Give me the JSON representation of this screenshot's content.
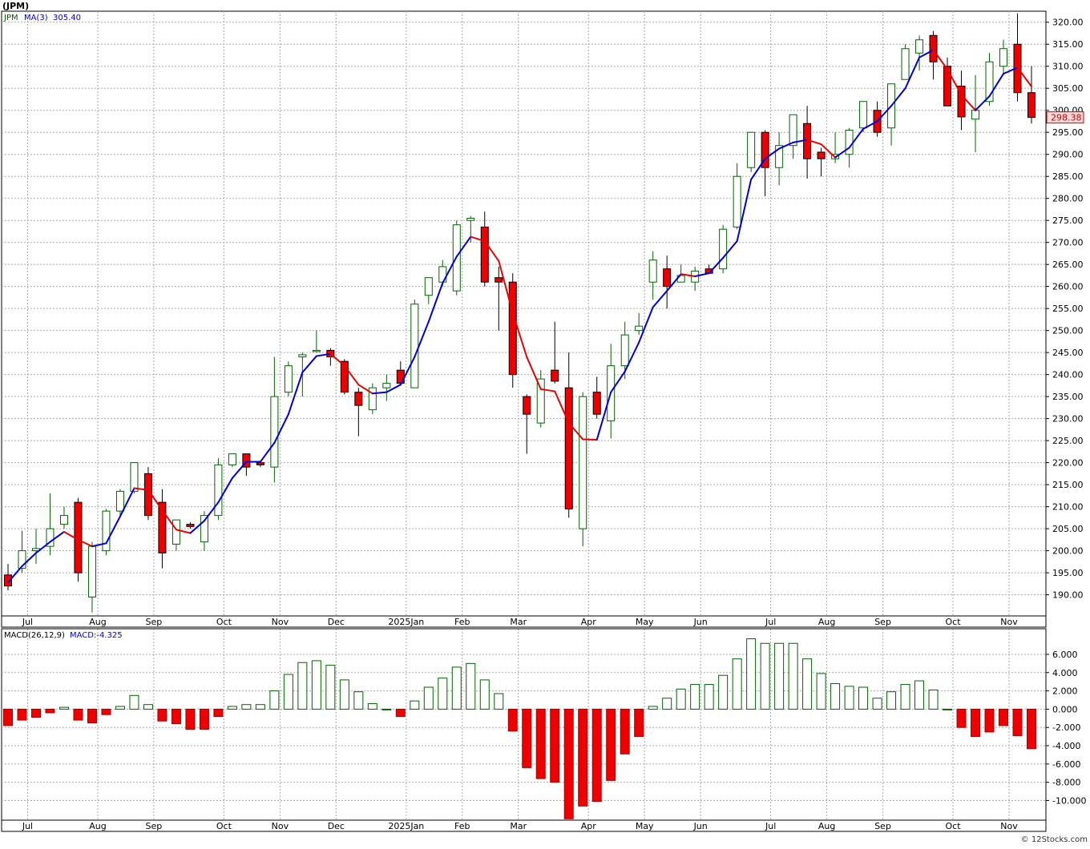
{
  "symbol_title": "(JPM)",
  "watermark": "© 12Stocks.com",
  "colors": {
    "up_fill": "#ffffff",
    "up_stroke": "#006400",
    "down_fill": "#ee0000",
    "down_stroke": "#000000",
    "ma_up": "#0000dd",
    "ma_down": "#ee0000",
    "grid": "#aaaaaa",
    "price_label_bg": "#ffd9d9",
    "price_label_fg": "#cc0000"
  },
  "chart_data": [
    {
      "type": "candlestick",
      "legend": {
        "symbol": "JPM",
        "indicator": "MA(3)",
        "indicator_value": "305.40"
      },
      "last_price_label": "298.38",
      "y_ticks": [
        "320.00",
        "315.00",
        "310.00",
        "305.00",
        "300.00",
        "295.00",
        "290.00",
        "285.00",
        "280.00",
        "275.00",
        "270.00",
        "265.00",
        "260.00",
        "255.00",
        "250.00",
        "245.00",
        "240.00",
        "235.00",
        "230.00",
        "225.00",
        "220.00",
        "215.00",
        "210.00",
        "205.00",
        "200.00",
        "195.00",
        "190.00"
      ],
      "y_tick_values": [
        320,
        315,
        310,
        305,
        300,
        295,
        290,
        285,
        280,
        275,
        270,
        265,
        260,
        255,
        250,
        245,
        240,
        235,
        230,
        225,
        220,
        215,
        210,
        205,
        200,
        195,
        190
      ],
      "x_labels": [
        {
          "label": "Jul",
          "index": 1
        },
        {
          "label": "Aug",
          "index": 6
        },
        {
          "label": "Sep",
          "index": 10
        },
        {
          "label": "Oct",
          "index": 15
        },
        {
          "label": "Nov",
          "index": 19
        },
        {
          "label": "Dec",
          "index": 23
        },
        {
          "label": "2025Jan",
          "index": 28
        },
        {
          "label": "Feb",
          "index": 32
        },
        {
          "label": "Mar",
          "index": 36
        },
        {
          "label": "Apr",
          "index": 41
        },
        {
          "label": "May",
          "index": 45
        },
        {
          "label": "Jun",
          "index": 49
        },
        {
          "label": "Jul",
          "index": 54
        },
        {
          "label": "Aug",
          "index": 58
        },
        {
          "label": "Sep",
          "index": 62
        },
        {
          "label": "Oct",
          "index": 67
        },
        {
          "label": "Nov",
          "index": 71
        }
      ],
      "candles": [
        [
          194.5,
          197.0,
          191.0,
          192.0
        ],
        [
          196.0,
          204.5,
          195.0,
          200.0
        ],
        [
          200.0,
          205.0,
          197.0,
          200.5
        ],
        [
          201.0,
          213.0,
          199.0,
          205.0
        ],
        [
          206.0,
          210.0,
          205.0,
          208.0
        ],
        [
          211.0,
          212.0,
          193.0,
          195.0
        ],
        [
          189.5,
          202.0,
          186.0,
          201.0
        ],
        [
          200.0,
          209.5,
          199.0,
          209.0
        ],
        [
          209.0,
          214.0,
          208.0,
          213.5
        ],
        [
          213.5,
          220.0,
          213.0,
          220.0
        ],
        [
          217.5,
          219.0,
          207.0,
          208.0
        ],
        [
          211.0,
          214.0,
          196.0,
          199.5
        ],
        [
          201.5,
          207.0,
          200.0,
          207.0
        ],
        [
          206.0,
          206.5,
          205.0,
          205.5
        ],
        [
          202.0,
          209.0,
          200.0,
          208.0
        ],
        [
          208.0,
          221.0,
          207.0,
          219.5
        ],
        [
          219.5,
          222.0,
          219.0,
          222.0
        ],
        [
          222.0,
          222.0,
          217.0,
          219.0
        ],
        [
          220.0,
          220.5,
          219.0,
          219.5
        ],
        [
          219.0,
          244.0,
          215.5,
          235.0
        ],
        [
          236.0,
          243.0,
          235.0,
          242.0
        ],
        [
          244.0,
          245.0,
          235.0,
          244.5
        ],
        [
          245.5,
          250.0,
          245.0,
          245.5
        ],
        [
          245.5,
          246.0,
          242.0,
          244.0
        ],
        [
          243.0,
          243.5,
          235.5,
          236.0
        ],
        [
          236.0,
          237.0,
          226.0,
          233.0
        ],
        [
          232.0,
          238.0,
          231.0,
          237.0
        ],
        [
          237.0,
          240.0,
          234.0,
          238.0
        ],
        [
          241.0,
          243.0,
          238.0,
          238.0
        ],
        [
          237.0,
          257.0,
          237.0,
          256.0
        ],
        [
          258.0,
          262.0,
          256.0,
          262.0
        ],
        [
          261.0,
          266.0,
          260.0,
          264.5
        ],
        [
          259.0,
          275.0,
          258.0,
          274.0
        ],
        [
          275.0,
          276.0,
          270.0,
          275.5
        ],
        [
          273.5,
          277.0,
          260.0,
          261.0
        ],
        [
          262.0,
          264.5,
          250.0,
          261.0
        ],
        [
          261.0,
          263.0,
          237.0,
          240.0
        ],
        [
          235.0,
          235.5,
          222.0,
          231.0
        ],
        [
          229.0,
          241.0,
          228.0,
          239.0
        ],
        [
          241.0,
          252.0,
          238.0,
          238.5
        ],
        [
          237.0,
          245.0,
          207.5,
          209.5
        ],
        [
          205.0,
          236.0,
          201.0,
          235.0
        ],
        [
          236.0,
          239.5,
          230.0,
          231.0
        ],
        [
          229.5,
          247.0,
          225.5,
          242.0
        ],
        [
          242.0,
          252.0,
          239.0,
          249.0
        ],
        [
          250.0,
          254.0,
          249.0,
          251.0
        ],
        [
          261.0,
          268.0,
          257.0,
          266.0
        ],
        [
          264.0,
          267.0,
          255.0,
          260.0
        ],
        [
          261.0,
          265.0,
          261.0,
          262.5
        ],
        [
          261.0,
          264.5,
          259.0,
          263.5
        ],
        [
          264.0,
          265.0,
          263.0,
          263.0
        ],
        [
          264.0,
          274.0,
          263.0,
          273.0
        ],
        [
          273.5,
          288.0,
          273.0,
          285.0
        ],
        [
          287.0,
          295.0,
          286.0,
          295.0
        ],
        [
          295.0,
          295.5,
          280.5,
          287.0
        ],
        [
          287.0,
          295.0,
          283.0,
          292.0
        ],
        [
          292.0,
          299.0,
          289.0,
          299.0
        ],
        [
          297.0,
          301.0,
          284.5,
          289.0
        ],
        [
          290.5,
          291.5,
          285.0,
          289.0
        ],
        [
          289.0,
          295.0,
          288.0,
          290.0
        ],
        [
          290.0,
          296.0,
          287.0,
          295.5
        ],
        [
          296.0,
          302.0,
          295.0,
          302.0
        ],
        [
          300.0,
          302.0,
          294.0,
          295.0
        ],
        [
          296.0,
          306.0,
          292.0,
          306.0
        ],
        [
          307.0,
          315.0,
          307.0,
          314.0
        ],
        [
          313.0,
          317.0,
          309.0,
          316.0
        ],
        [
          317.0,
          318.0,
          307.0,
          311.0
        ],
        [
          310.0,
          312.0,
          301.0,
          301.0
        ],
        [
          305.5,
          309.0,
          295.5,
          298.5
        ],
        [
          298.0,
          308.0,
          290.5,
          300.0
        ],
        [
          302.0,
          313.0,
          301.0,
          311.0
        ],
        [
          310.0,
          316.0,
          308.0,
          314.0
        ],
        [
          315.0,
          322.0,
          302.0,
          304.0
        ],
        [
          304.0,
          310.0,
          297.0,
          298.38
        ]
      ],
      "ma3": [
        192.8,
        196.5,
        199.5,
        202.0,
        204.3,
        202.5,
        201.0,
        201.7,
        207.8,
        214.2,
        213.8,
        209.2,
        204.8,
        204.0,
        206.8,
        211.0,
        216.5,
        220.2,
        220.2,
        224.5,
        231.0,
        240.5,
        244.2,
        244.7,
        242.0,
        237.7,
        235.7,
        236.0,
        237.7,
        244.0,
        252.0,
        260.8,
        266.8,
        271.3,
        270.3,
        265.8,
        254.0,
        244.0,
        236.7,
        236.2,
        229.0,
        225.3,
        225.2,
        236.0,
        240.7,
        247.3,
        255.3,
        259.0,
        262.8,
        262.3,
        263.0,
        266.5,
        270.3,
        284.3,
        289.0,
        291.3,
        292.7,
        293.3,
        292.3,
        289.3,
        291.5,
        295.8,
        297.5,
        301.0,
        305.0,
        312.0,
        313.7,
        309.3,
        303.5,
        300.0,
        303.2,
        308.3,
        309.7,
        305.4
      ],
      "panel_label": "price"
    },
    {
      "type": "bar",
      "title": "MACD(26,12,9)",
      "legend_value_label": "MACD:-4.325",
      "y_ticks": [
        "6.000",
        "4.000",
        "2.000",
        "0.000",
        "-2.000",
        "-4.000",
        "-6.000",
        "-8.000",
        "-10.000"
      ],
      "y_tick_values": [
        6,
        4,
        2,
        0,
        -2,
        -4,
        -6,
        -8,
        -10
      ],
      "values": [
        -1.8,
        -1.2,
        -0.9,
        -0.4,
        0.2,
        -1.2,
        -1.5,
        -0.6,
        0.3,
        1.5,
        0.5,
        -1.3,
        -1.6,
        -2.2,
        -2.2,
        -0.8,
        0.3,
        0.5,
        0.5,
        2.0,
        3.8,
        5.1,
        5.3,
        4.8,
        3.2,
        1.9,
        0.6,
        0.0,
        -0.8,
        0.9,
        2.4,
        3.4,
        4.6,
        5.0,
        3.2,
        1.7,
        -2.4,
        -6.4,
        -7.6,
        -8.0,
        -12.0,
        -10.6,
        -10.1,
        -7.8,
        -4.9,
        -3.0,
        0.3,
        1.2,
        2.2,
        2.7,
        2.7,
        3.7,
        5.5,
        7.7,
        7.2,
        7.2,
        7.2,
        5.5,
        3.9,
        2.8,
        2.5,
        2.4,
        1.2,
        1.9,
        2.7,
        3.1,
        2.1,
        0.0,
        -2.0,
        -3.0,
        -2.5,
        -1.8,
        -2.9,
        -4.325
      ],
      "x_labels": [
        "Jul",
        "Aug",
        "Sep",
        "Oct",
        "Nov",
        "Dec",
        "2025Jan",
        "Feb",
        "Mar",
        "Apr",
        "May",
        "Jun",
        "Jul",
        "Aug",
        "Sep",
        "Oct",
        "Nov"
      ]
    }
  ]
}
